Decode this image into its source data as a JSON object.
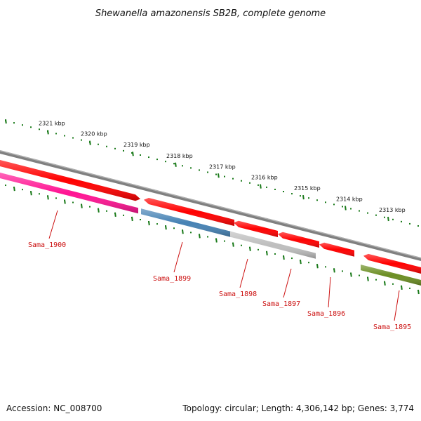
{
  "header": {
    "title": "Shewanella amazonensis SB2B, complete genome"
  },
  "footer": {
    "accession": "Accession: NC_008700",
    "stats": "Topology: circular; Length: 4,306,142 bp; Genes: 3,774"
  },
  "ruler": {
    "labels": [
      "2321 kbp",
      "2320 kbp",
      "2319 kbp",
      "2318 kbp",
      "2317 kbp",
      "2316 kbp",
      "2315 kbp",
      "2314 kbp",
      "2313 kbp"
    ],
    "color": "#1a7a1a"
  },
  "backbone": {
    "color": "#808080"
  },
  "genes": [
    {
      "name": "Sama_1900",
      "strand": "reverse",
      "color": "#ff1493"
    },
    {
      "name": "Sama_1899",
      "strand": "reverse",
      "color": "#4682b4"
    },
    {
      "name": "Sama_1898",
      "strand": "reverse",
      "color": "#bebebe"
    },
    {
      "name": "Sama_1897",
      "strand": "forward",
      "color": "#ff0000"
    },
    {
      "name": "Sama_1896",
      "strand": "forward",
      "color": "#ff0000"
    },
    {
      "name": "Sama_1895",
      "strand": "reverse",
      "color": "#6b8e23"
    }
  ],
  "colors": {
    "forward_strand": "#ff0000",
    "label": "#cc1111"
  }
}
